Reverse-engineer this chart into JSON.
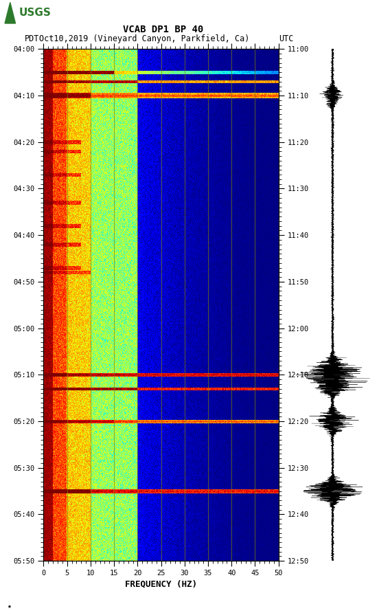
{
  "title_line1": "VCAB DP1 BP 40",
  "title_line2_left": "PDT",
  "title_line2_mid": "Oct10,2019 (Vineyard Canyon, Parkfield, Ca)",
  "title_line2_right": "UTC",
  "xlabel": "FREQUENCY (HZ)",
  "freq_min": 0,
  "freq_max": 50,
  "freq_ticks": [
    0,
    5,
    10,
    15,
    20,
    25,
    30,
    35,
    40,
    45,
    50
  ],
  "time_ticks_left": [
    "04:00",
    "04:10",
    "04:20",
    "04:30",
    "04:40",
    "04:50",
    "05:00",
    "05:10",
    "05:20",
    "05:30",
    "05:40",
    "05:50"
  ],
  "time_ticks_right": [
    "11:00",
    "11:10",
    "11:20",
    "11:30",
    "11:40",
    "11:50",
    "12:00",
    "12:10",
    "12:20",
    "12:30",
    "12:40",
    "12:50"
  ],
  "vline_color": "#808000",
  "vline_freq": [
    5,
    10,
    15,
    20,
    25,
    30,
    35,
    40,
    45
  ],
  "colormap": "jet",
  "fig_width": 5.52,
  "fig_height": 8.92,
  "n_time": 660,
  "n_freq": 500
}
